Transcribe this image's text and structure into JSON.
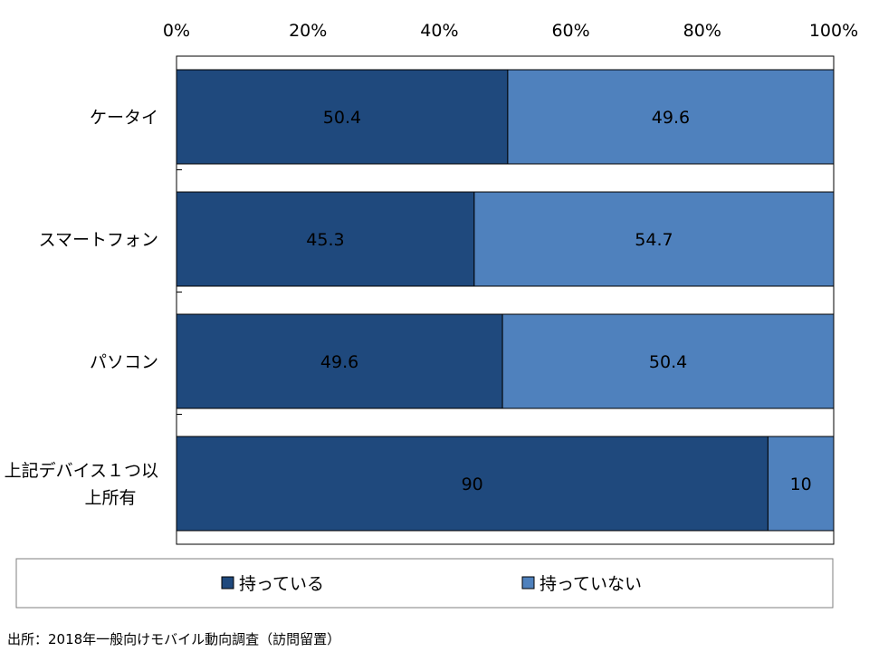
{
  "chart_data": {
    "type": "bar",
    "orientation": "horizontal",
    "stacked": true,
    "percent_axis": true,
    "categories": [
      "ケータイ",
      "スマートフォン",
      "パソコン",
      "上記デバイス１つ以上所有"
    ],
    "category_lines": [
      [
        "ケータイ"
      ],
      [
        "スマートフォン"
      ],
      [
        "パソコン"
      ],
      [
        "上記デバイス１つ以",
        "上所有"
      ]
    ],
    "series": [
      {
        "name": "持っている",
        "values": [
          50.4,
          45.3,
          49.6,
          90
        ],
        "color": "#1f497d"
      },
      {
        "name": "持っていない",
        "values": [
          49.6,
          54.7,
          50.4,
          10
        ],
        "color": "#4f81bd"
      }
    ],
    "value_labels": [
      [
        "50.4",
        "45.3",
        "49.6",
        "90"
      ],
      [
        "49.6",
        "54.7",
        "50.4",
        "10"
      ]
    ],
    "xlim": [
      0,
      100
    ],
    "x_ticks": [
      0,
      20,
      40,
      60,
      80,
      100
    ],
    "x_tick_labels": [
      "0%",
      "20%",
      "40%",
      "60%",
      "80%",
      "100%"
    ],
    "x_axis_position": "top",
    "grid": false,
    "legend_position": "bottom",
    "source": "出所：2018年一般向けモバイル動向調査（訪問留置）"
  }
}
